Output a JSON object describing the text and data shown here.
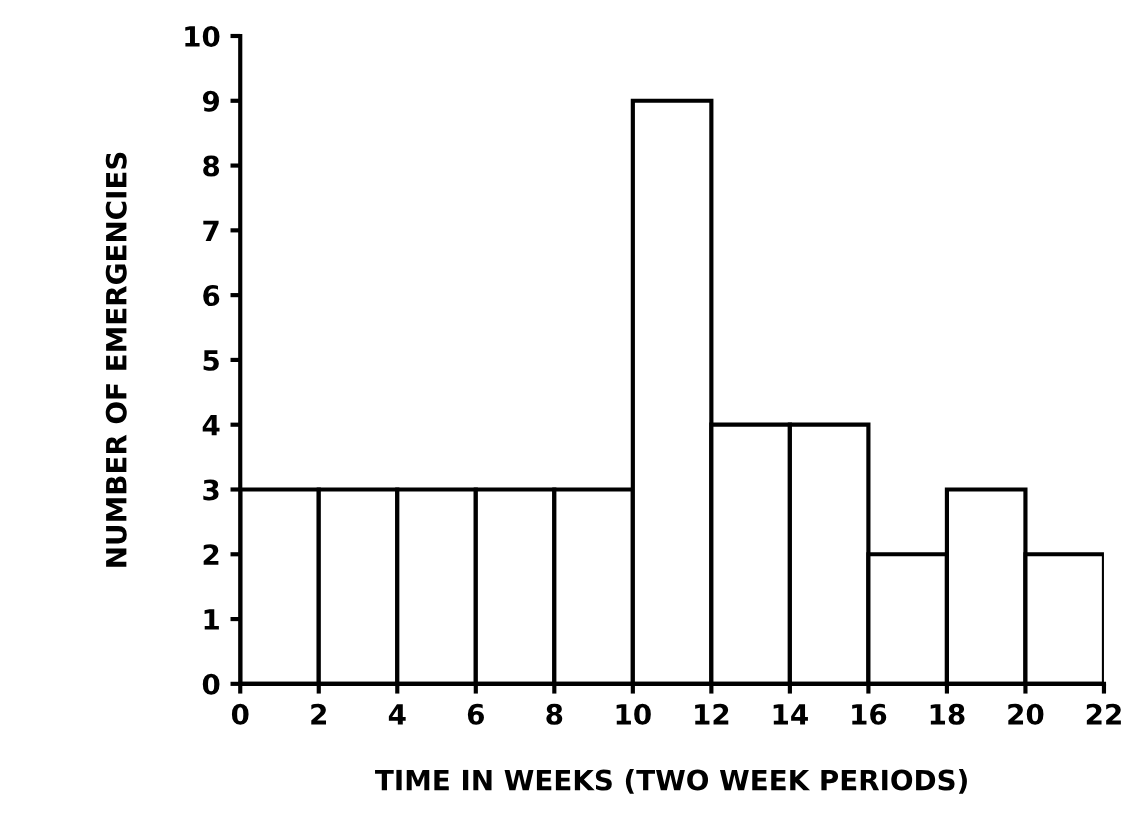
{
  "chart_data": {
    "type": "histogram",
    "xlabel": "TIME IN WEEKS (TWO WEEK PERIODS)",
    "ylabel": "NUMBER OF EMERGENCIES",
    "bins": [
      0,
      2,
      4,
      6,
      8,
      10,
      12,
      14,
      16,
      18,
      20,
      22
    ],
    "values": [
      3,
      3,
      3,
      3,
      3,
      9,
      4,
      4,
      2,
      3,
      2
    ],
    "color": "#ffffff",
    "xlim": [
      0,
      22
    ],
    "xticks": [
      0,
      2,
      4,
      6,
      8,
      10,
      12,
      14,
      16,
      18,
      20,
      22
    ],
    "ylim": [
      0,
      10
    ],
    "yticks": [
      0,
      1,
      2,
      3,
      4,
      5,
      6,
      7,
      8,
      9,
      10
    ],
    "grid": false,
    "legend": false
  }
}
